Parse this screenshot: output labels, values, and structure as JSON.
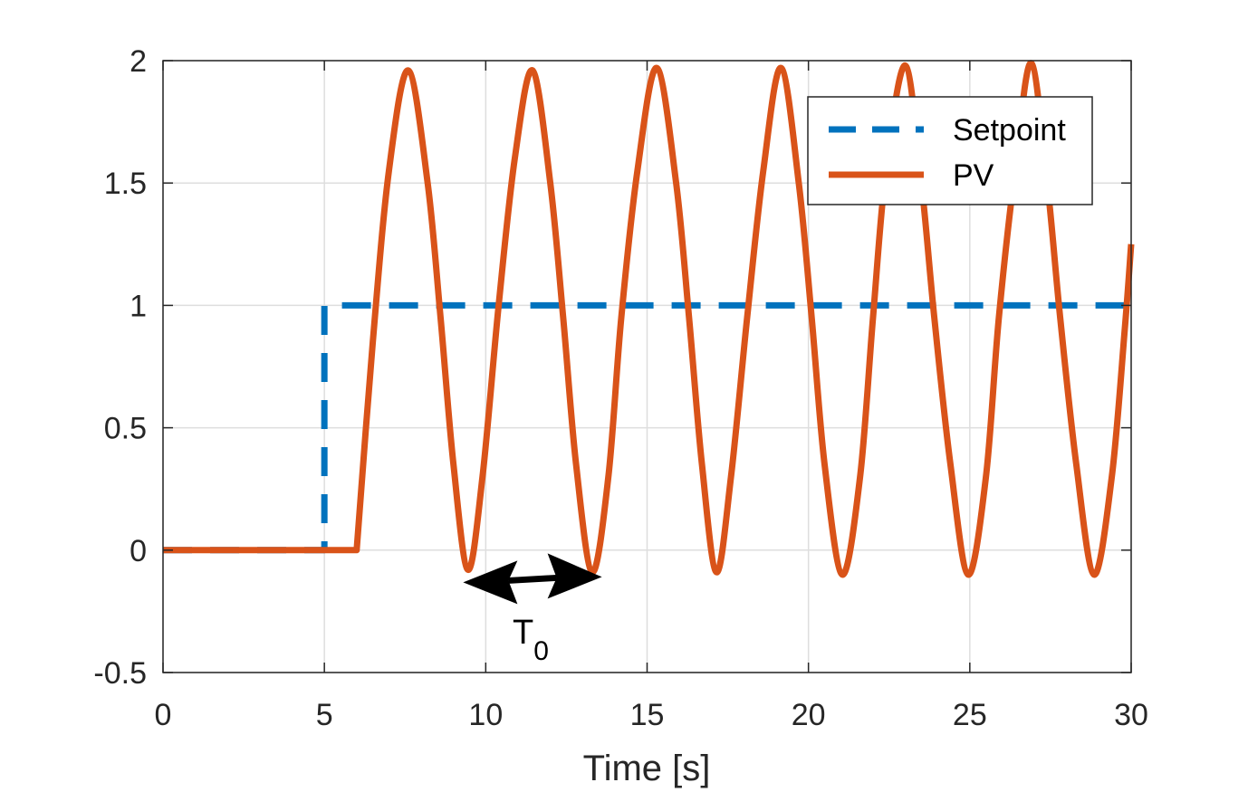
{
  "chart_data": {
    "type": "line",
    "title": "",
    "xlabel": "Time [s]",
    "ylabel": "",
    "xlim": [
      0,
      30
    ],
    "ylim": [
      -0.5,
      2
    ],
    "xticks": [
      0,
      5,
      10,
      15,
      20,
      25,
      30
    ],
    "yticks": [
      -0.5,
      0,
      0.5,
      1,
      1.5,
      2
    ],
    "xtick_labels": [
      "0",
      "5",
      "10",
      "15",
      "20",
      "25",
      "30"
    ],
    "ytick_labels": [
      "-0.5",
      "0",
      "0.5",
      "1",
      "1.5",
      "2"
    ],
    "grid": true,
    "legend_position": "top-right",
    "series": [
      {
        "name": "Setpoint",
        "style": "dashed",
        "color": "#0072BD",
        "x": [
          0,
          5,
          5,
          30
        ],
        "y": [
          0,
          0,
          1,
          1
        ]
      },
      {
        "name": "PV",
        "style": "solid",
        "color": "#D95319",
        "x": [
          0,
          6,
          6.5,
          7,
          7.6,
          8.2,
          8.6,
          9.0,
          9.45,
          9.9,
          10.4,
          10.9,
          11.45,
          12.0,
          12.4,
          12.8,
          13.3,
          13.8,
          14.2,
          14.7,
          15.3,
          15.9,
          16.3,
          16.7,
          17.15,
          17.6,
          18.1,
          18.6,
          19.15,
          19.7,
          20.1,
          20.5,
          21.05,
          21.6,
          22.0,
          22.4,
          23.0,
          23.5,
          23.9,
          24.4,
          24.95,
          25.5,
          25.9,
          26.4,
          26.9,
          27.4,
          27.8,
          28.3,
          28.85,
          29.4,
          29.8,
          30
        ],
        "y": [
          0,
          0,
          0.85,
          1.55,
          1.96,
          1.5,
          0.95,
          0.35,
          -0.08,
          0.3,
          1.0,
          1.6,
          1.96,
          1.5,
          0.95,
          0.35,
          -0.09,
          0.3,
          0.95,
          1.55,
          1.97,
          1.5,
          0.95,
          0.35,
          -0.09,
          0.3,
          0.95,
          1.55,
          1.97,
          1.5,
          0.95,
          0.35,
          -0.1,
          0.3,
          0.95,
          1.55,
          1.98,
          1.5,
          0.95,
          0.35,
          -0.1,
          0.3,
          0.95,
          1.55,
          1.99,
          1.5,
          0.95,
          0.35,
          -0.1,
          0.3,
          0.9,
          1.25
        ]
      }
    ],
    "annotation": {
      "text": "T",
      "subscript": "0",
      "arrow_x": [
        9.3,
        13.6
      ],
      "arrow_y": -0.08
    }
  }
}
